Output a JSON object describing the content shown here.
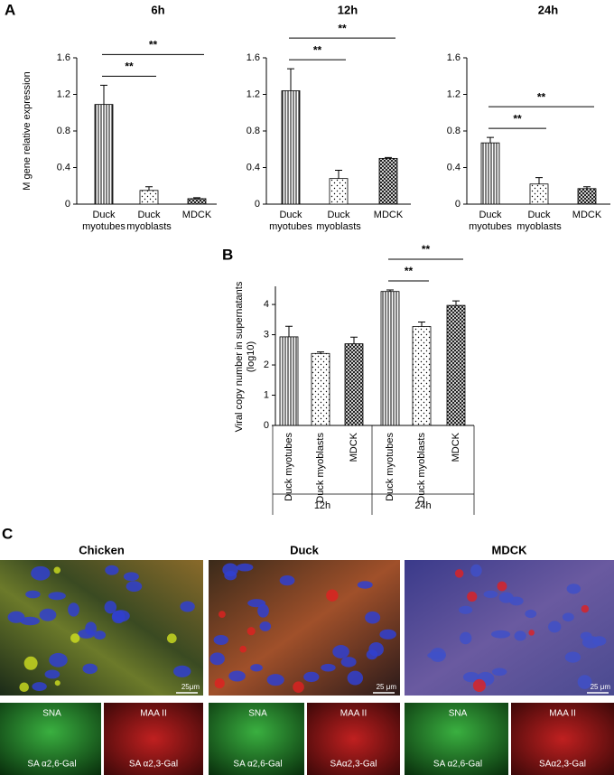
{
  "panel_labels": [
    "A",
    "B",
    "C"
  ],
  "chart_data": [
    {
      "type": "bar",
      "title": "6h",
      "ylabel": "M gene relative expression",
      "categories": [
        "Duck myotubes",
        "Duck myoblasts",
        "MDCK"
      ],
      "values": [
        1.09,
        0.15,
        0.06
      ],
      "errors": [
        0.21,
        0.04,
        0.01
      ],
      "ylim": [
        0,
        1.6
      ],
      "yticks": [
        0,
        0.4,
        0.8,
        1.2,
        1.6
      ],
      "comparisons": [
        {
          "label": "**",
          "between": [
            "Duck myotubes",
            "Duck myoblasts"
          ]
        },
        {
          "label": "**",
          "between": [
            "Duck myotubes",
            "MDCK"
          ]
        }
      ]
    },
    {
      "type": "bar",
      "title": "12h",
      "categories": [
        "Duck myotubes",
        "Duck myoblasts",
        "MDCK"
      ],
      "values": [
        1.24,
        0.28,
        0.5
      ],
      "errors": [
        0.24,
        0.09,
        0.01
      ],
      "ylim": [
        0,
        1.6
      ],
      "yticks": [
        0,
        0.4,
        0.8,
        1.2,
        1.6
      ],
      "comparisons": [
        {
          "label": "**",
          "between": [
            "Duck myotubes",
            "Duck myoblasts"
          ]
        },
        {
          "label": "**",
          "between": [
            "Duck myotubes",
            "MDCK"
          ]
        }
      ]
    },
    {
      "type": "bar",
      "title": "24h",
      "categories": [
        "Duck myotubes",
        "Duck myoblasts",
        "MDCK"
      ],
      "values": [
        0.67,
        0.22,
        0.17
      ],
      "errors": [
        0.06,
        0.07,
        0.02
      ],
      "ylim": [
        0,
        1.6
      ],
      "yticks": [
        0,
        0.4,
        0.8,
        1.2,
        1.6
      ],
      "comparisons": [
        {
          "label": "**",
          "between": [
            "Duck myotubes",
            "Duck myoblasts"
          ]
        },
        {
          "label": "**",
          "between": [
            "Duck myotubes",
            "MDCK"
          ]
        }
      ]
    },
    {
      "type": "grouped-bar",
      "ylabel": "Viral copy number in supernatants (log10)",
      "groups": [
        "12h",
        "24h"
      ],
      "categories": [
        [
          "Duck myotubes",
          "Duck myoblasts",
          "MDCK"
        ],
        [
          "Duck myotubes",
          "Duck myoblasts",
          "MDCK"
        ]
      ],
      "values": [
        [
          2.93,
          2.38,
          2.7
        ],
        [
          4.43,
          3.27,
          3.97
        ]
      ],
      "errors": [
        [
          0.35,
          0.05,
          0.22
        ],
        [
          0.05,
          0.15,
          0.15
        ]
      ],
      "ylim": [
        0,
        4.6
      ],
      "yticks": [
        0,
        1,
        2,
        3,
        4
      ],
      "comparisons": [
        {
          "label": "**",
          "between": [
            [
              "24h",
              "Duck myotubes"
            ],
            [
              "24h",
              "Duck myoblasts"
            ]
          ]
        },
        {
          "label": "**",
          "between": [
            [
              "24h",
              "Duck myotubes"
            ],
            [
              "24h",
              "MDCK"
            ]
          ]
        }
      ]
    }
  ],
  "panel_c": {
    "columns": [
      {
        "title": "Chicken",
        "scale_bar": "25μm",
        "stains": [
          {
            "name": "SNA",
            "target": "SA α2,6-Gal"
          },
          {
            "name": "MAA II",
            "target": "SA α2,3-Gal"
          }
        ]
      },
      {
        "title": "Duck",
        "scale_bar": "25 μm",
        "stains": [
          {
            "name": "SNA",
            "target": "SA α2,6-Gal"
          },
          {
            "name": "MAA II",
            "target": "SAα2,3-Gal"
          }
        ]
      },
      {
        "title": "MDCK",
        "scale_bar": "25 μm",
        "stains": [
          {
            "name": "SNA",
            "target": "SA α2,6-Gal"
          },
          {
            "name": "MAA II",
            "target": "SAα2,3-Gal"
          }
        ]
      }
    ]
  }
}
